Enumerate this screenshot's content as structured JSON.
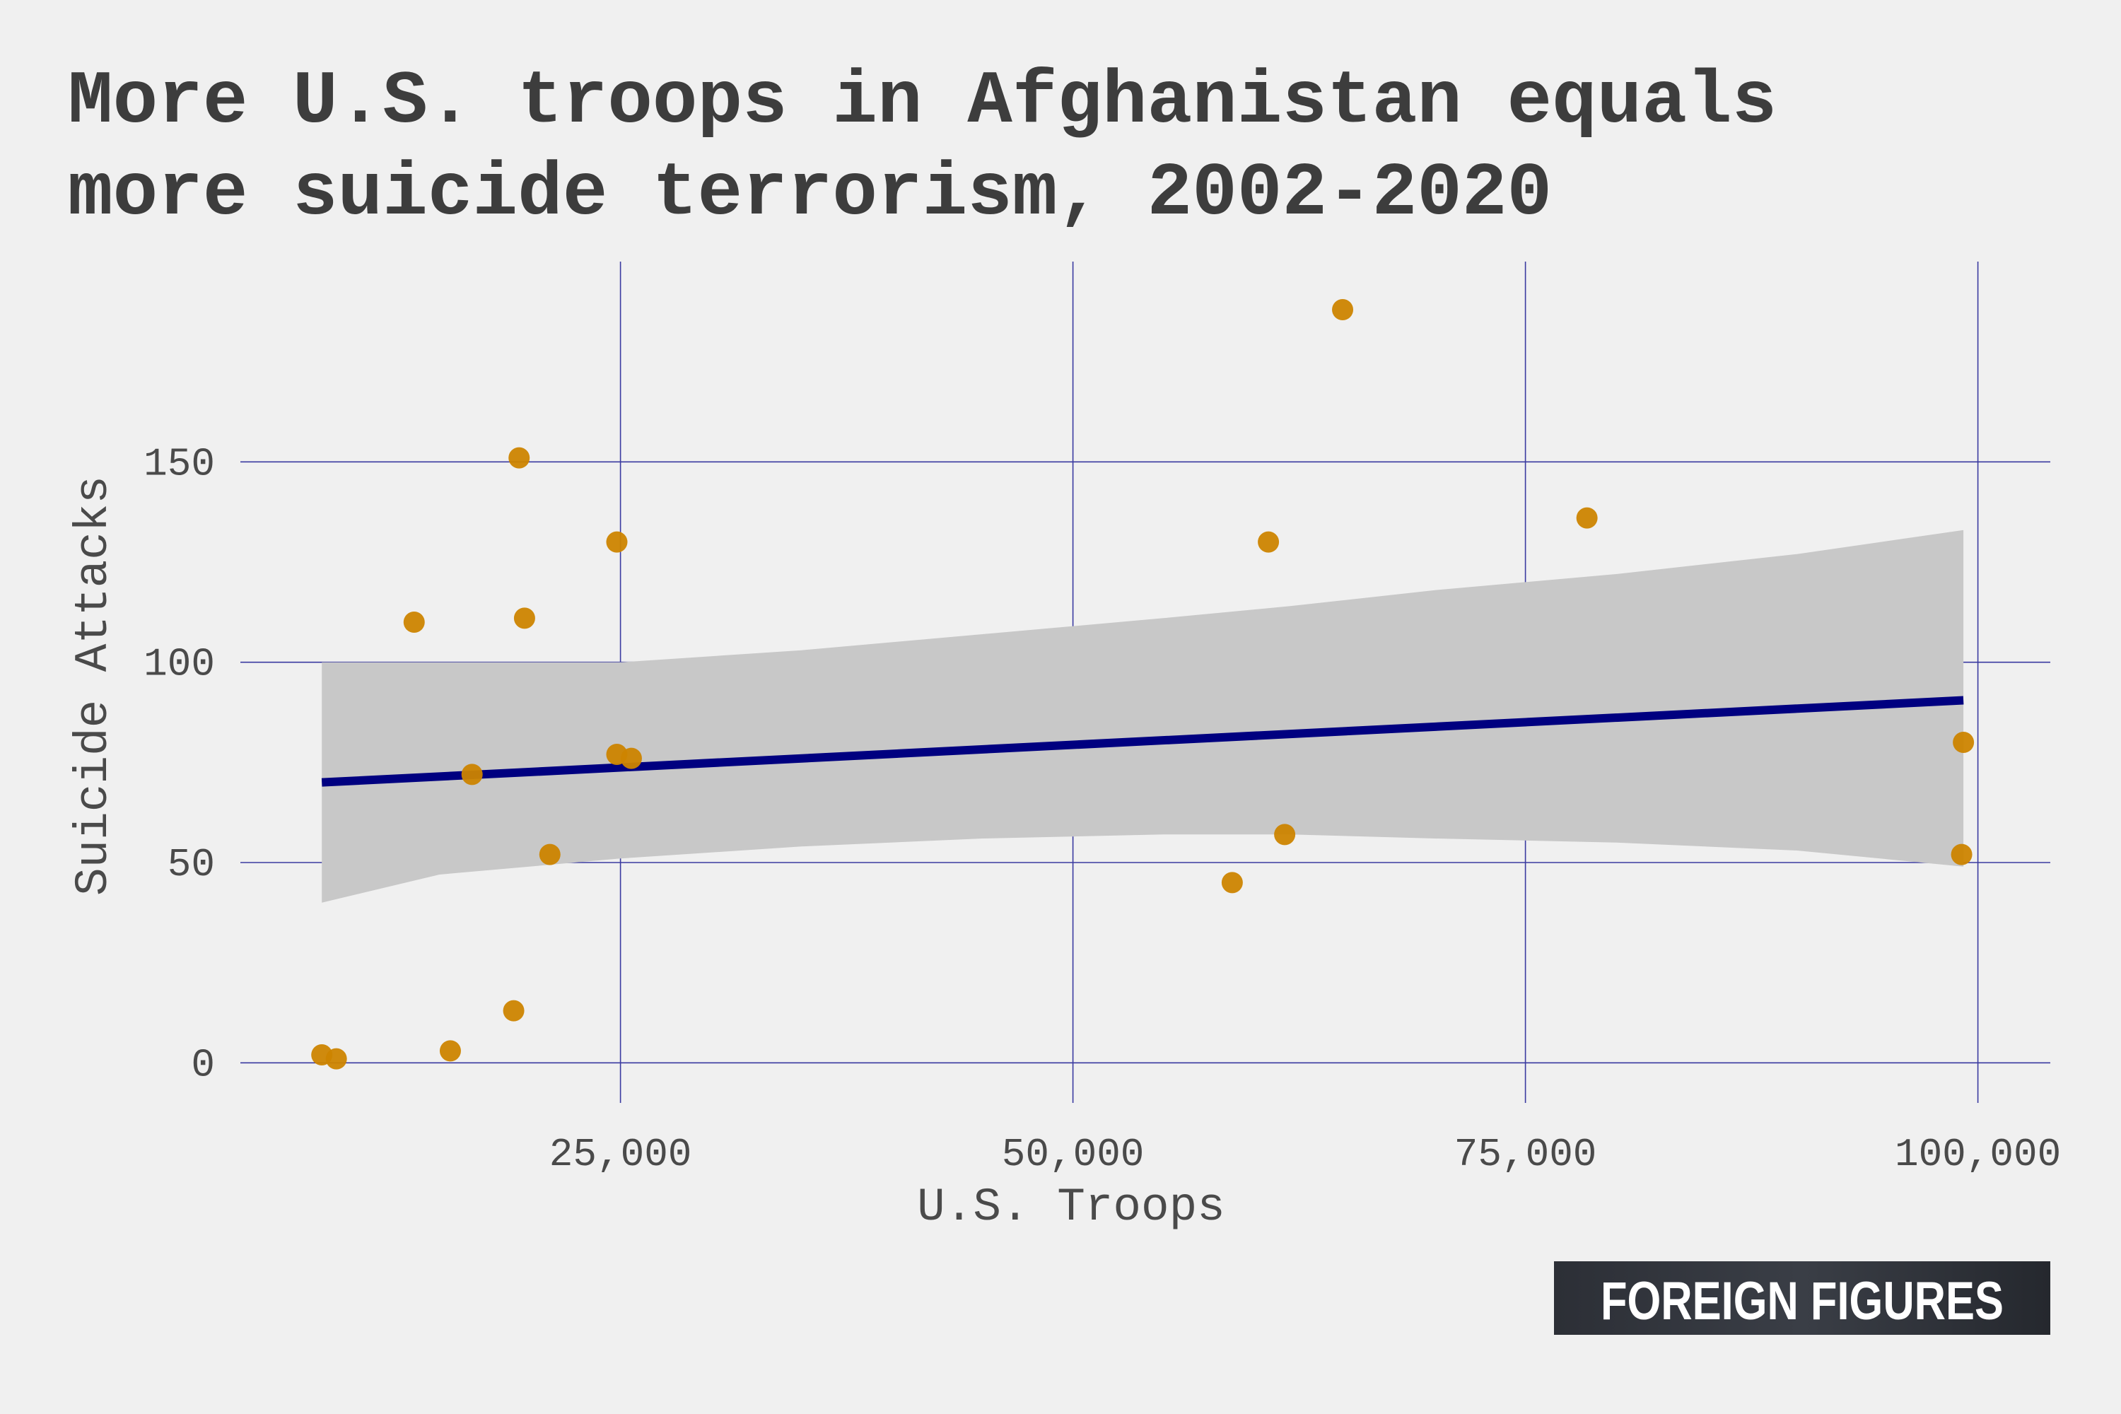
{
  "chart_data": {
    "type": "scatter",
    "title": "More U.S. troops in Afghanistan equals more suicide terrorism, 2002-2020",
    "title_lines": [
      "More U.S. troops in Afghanistan equals",
      "more suicide terrorism, 2002-2020"
    ],
    "xlabel": "U.S. Troops",
    "ylabel": "Suicide Attacks",
    "xlim": [
      4000,
      104000
    ],
    "ylim": [
      -10,
      200
    ],
    "x_ticks": [
      25000,
      50000,
      75000,
      100000
    ],
    "x_tick_labels": [
      "25,000",
      "50,000",
      "75,000",
      "100,000"
    ],
    "y_ticks": [
      0,
      50,
      100,
      150
    ],
    "y_tick_labels": [
      "0",
      "50",
      "100",
      "150"
    ],
    "grid": true,
    "points": [
      {
        "x": 8500,
        "y": 2
      },
      {
        "x": 9300,
        "y": 1
      },
      {
        "x": 13600,
        "y": 110
      },
      {
        "x": 15600,
        "y": 3
      },
      {
        "x": 16800,
        "y": 72
      },
      {
        "x": 19100,
        "y": 13
      },
      {
        "x": 19400,
        "y": 151
      },
      {
        "x": 19700,
        "y": 111
      },
      {
        "x": 21100,
        "y": 52
      },
      {
        "x": 24800,
        "y": 130
      },
      {
        "x": 24800,
        "y": 77
      },
      {
        "x": 25600,
        "y": 76
      },
      {
        "x": 58800,
        "y": 45
      },
      {
        "x": 60800,
        "y": 130
      },
      {
        "x": 61700,
        "y": 57
      },
      {
        "x": 64900,
        "y": 188
      },
      {
        "x": 78400,
        "y": 136
      },
      {
        "x": 99100,
        "y": 52
      },
      {
        "x": 99200,
        "y": 80
      }
    ],
    "trend_line": {
      "x": [
        8500,
        99200
      ],
      "y": [
        70,
        90.5
      ]
    },
    "confidence_band": {
      "x": [
        8500,
        15000,
        25000,
        35000,
        45000,
        55000,
        62000,
        70000,
        80000,
        90000,
        99200
      ],
      "upper": [
        100,
        100,
        100,
        103,
        107,
        111,
        114,
        118,
        122,
        127,
        133
      ],
      "lower": [
        40,
        47,
        51,
        54,
        56,
        57,
        57,
        56,
        55,
        53,
        49
      ]
    },
    "colors": {
      "points": "#cc8400",
      "trend": "#000080",
      "band": "#c8c8c8",
      "grid": "#3a3aa0",
      "background": "#f0f0f0"
    }
  },
  "branding": {
    "logo_text": "FOREIGN FIGURES"
  }
}
